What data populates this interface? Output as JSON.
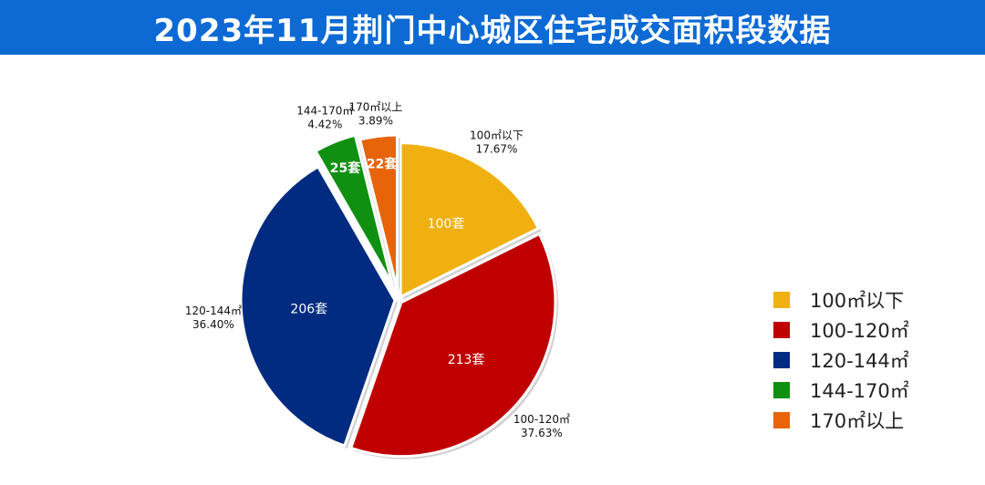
{
  "title": "2023年11月荆门中心城区住宅成交面积段数据",
  "chart_data": {
    "type": "pie",
    "title": "2023年11月荆门中心城区住宅成交面积段数据",
    "legend_position": "right",
    "slices": [
      {
        "label": "100㎡以下",
        "value": 100,
        "value_label": "100套",
        "percent_label": "17.67%",
        "color": "#f0b00f"
      },
      {
        "label": "100-120㎡",
        "value": 213,
        "value_label": "213套",
        "percent_label": "37.63%",
        "color": "#c00000"
      },
      {
        "label": "120-144㎡",
        "value": 206,
        "value_label": "206套",
        "percent_label": "36.40%",
        "color": "#002b80"
      },
      {
        "label": "144-170㎡",
        "value": 25,
        "value_label": "25套",
        "percent_label": "4.42%",
        "color": "#109010"
      },
      {
        "label": "170㎡以上",
        "value": 22,
        "value_label": "22套",
        "percent_label": "3.89%",
        "color": "#e8640a"
      }
    ]
  }
}
